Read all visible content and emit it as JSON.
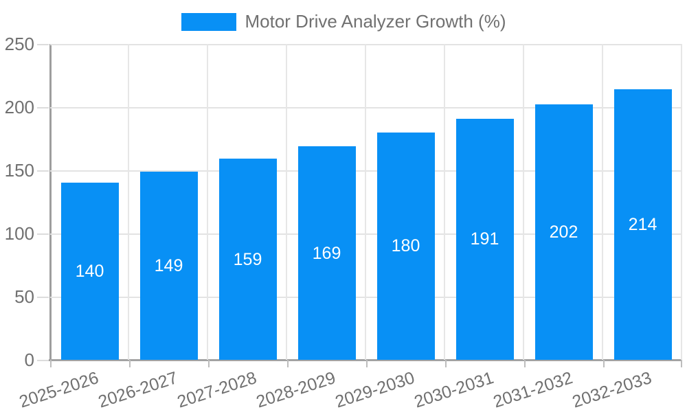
{
  "legend": {
    "label": "Motor Drive Analyzer Growth (%)"
  },
  "chart_data": {
    "type": "bar",
    "title": "Motor Drive Analyzer Growth (%)",
    "categories": [
      "2025-2026",
      "2026-2027",
      "2027-2028",
      "2028-2029",
      "2029-2030",
      "2030-2031",
      "2031-2032",
      "2032-2033"
    ],
    "values": [
      140,
      149,
      159,
      169,
      180,
      191,
      202,
      214
    ],
    "value_labels": [
      "140",
      "149",
      "159",
      "169",
      "180",
      "191",
      "202",
      "214"
    ],
    "xlabel": "",
    "ylabel": "",
    "ylim": [
      0,
      250
    ],
    "yticks": [
      0,
      50,
      100,
      150,
      200,
      250
    ],
    "ytick_labels": [
      "0",
      "50",
      "100",
      "150",
      "200",
      "250"
    ],
    "grid": true,
    "legend_position": "top",
    "colors": {
      "bar": "#0890f5",
      "gridline": "#e3e3e3",
      "axis": "#9e9e9e",
      "tick_text": "#707070",
      "legend_text": "#707070",
      "value_label_text": "#ffffff",
      "background": "#ffffff"
    }
  }
}
